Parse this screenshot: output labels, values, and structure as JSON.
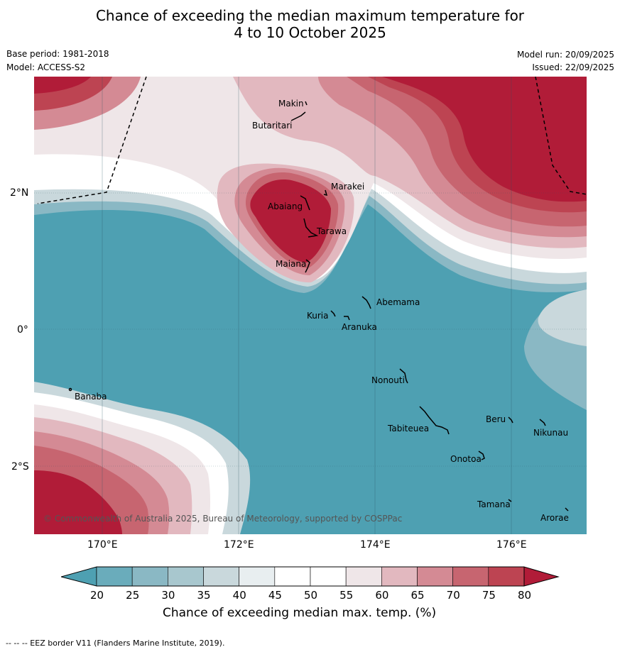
{
  "title": {
    "line1": "Chance of exceeding the median maximum temperature for",
    "line2": "4 to 10 October 2025"
  },
  "meta": {
    "base_period": "Base period: 1981-2018",
    "model": "Model: ACCESS-S2",
    "model_run": "Model run: 20/09/2025",
    "issued": "Issued: 22/09/2025"
  },
  "map": {
    "lon_labels": [
      "170°E",
      "172°E",
      "174°E",
      "176°E"
    ],
    "lat_labels": [
      "2°N",
      "0°",
      "2°S"
    ],
    "copyright": "© Commonwealth of Australia 2025, Bureau of Meteorology, supported by COSPPac",
    "places": [
      "Makin",
      "Butaritari",
      "Marakei",
      "Abaiang",
      "Tarawa",
      "Maiana",
      "Abemama",
      "Kuria",
      "Aranuka",
      "Nonouti",
      "Banaba",
      "Tabiteuea",
      "Beru",
      "Nikunau",
      "Onotoa",
      "Tamana",
      "Arorae"
    ]
  },
  "colorbar": {
    "ticks": [
      "20",
      "25",
      "30",
      "35",
      "40",
      "45",
      "50",
      "55",
      "60",
      "65",
      "70",
      "75",
      "80"
    ],
    "colors": [
      "#4ea0b2",
      "#6aacbb",
      "#8ab8c4",
      "#a8c7ce",
      "#c9d8dc",
      "#e8eef0",
      "#ffffff",
      "#ffffff",
      "#efe6e8",
      "#e2b8bf",
      "#d48a94",
      "#c76570",
      "#bd4452",
      "#b11c38"
    ],
    "label": "Chance of exceeding median max. temp. (%)"
  },
  "footer": "--  --  -- EEZ border V11 (Flanders Marine Institute, 2019)."
}
